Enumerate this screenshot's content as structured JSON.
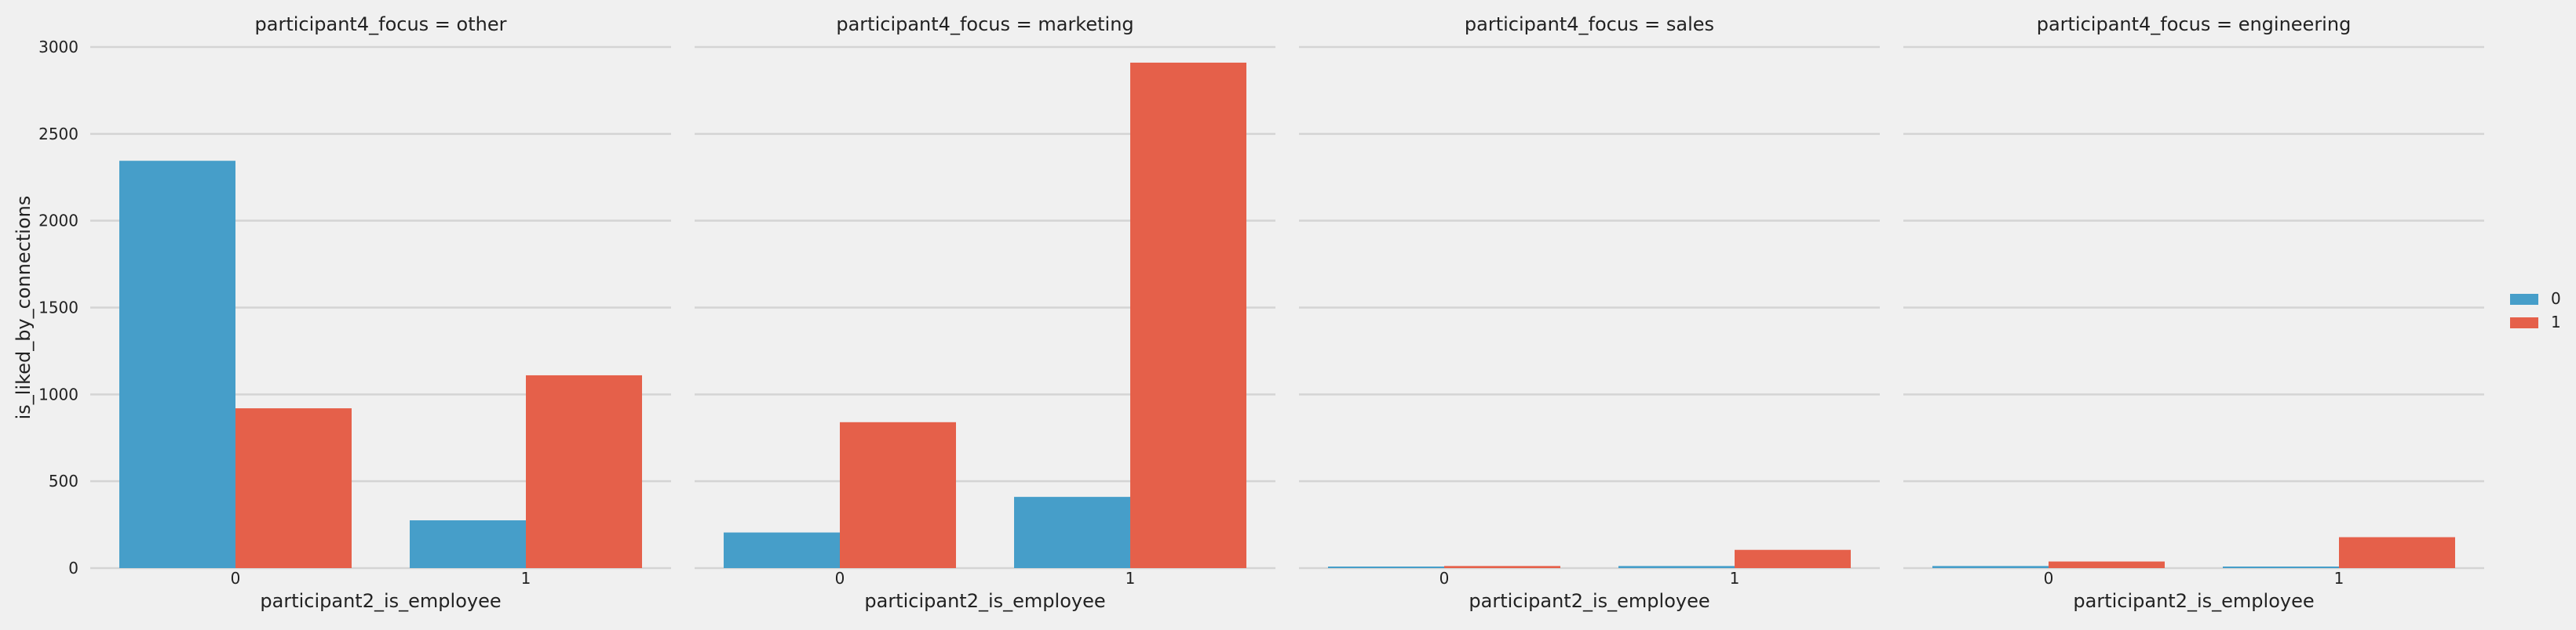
{
  "chart_data": {
    "type": "bar",
    "ylabel": "is_liked_by_connections",
    "xlabel": "participant2_is_employee",
    "ylim": [
      0,
      3000
    ],
    "yticks": [
      0,
      500,
      1000,
      1500,
      2000,
      2500,
      3000
    ],
    "grid": true,
    "legend": {
      "placement": "right",
      "entries": [
        "0",
        "1"
      ]
    },
    "colors": {
      "0": "#469ec9",
      "1": "#e5604a",
      "background": "#f0f0f0",
      "grid": "#d4d4d4"
    },
    "facets": [
      {
        "title": "participant4_focus = other",
        "categories": [
          "0",
          "1"
        ],
        "series": [
          {
            "name": "0",
            "values": [
              2345,
              275
            ]
          },
          {
            "name": "1",
            "values": [
              920,
              1110
            ]
          }
        ]
      },
      {
        "title": "participant4_focus = marketing",
        "categories": [
          "0",
          "1"
        ],
        "series": [
          {
            "name": "0",
            "values": [
              205,
              410
            ]
          },
          {
            "name": "1",
            "values": [
              840,
              2910
            ]
          }
        ]
      },
      {
        "title": "participant4_focus = sales",
        "categories": [
          "0",
          "1"
        ],
        "series": [
          {
            "name": "0",
            "values": [
              3,
              12
            ]
          },
          {
            "name": "1",
            "values": [
              12,
              105
            ]
          }
        ]
      },
      {
        "title": "participant4_focus = engineering",
        "categories": [
          "0",
          "1"
        ],
        "series": [
          {
            "name": "0",
            "values": [
              12,
              5
            ]
          },
          {
            "name": "1",
            "values": [
              38,
              178
            ]
          }
        ]
      }
    ]
  }
}
